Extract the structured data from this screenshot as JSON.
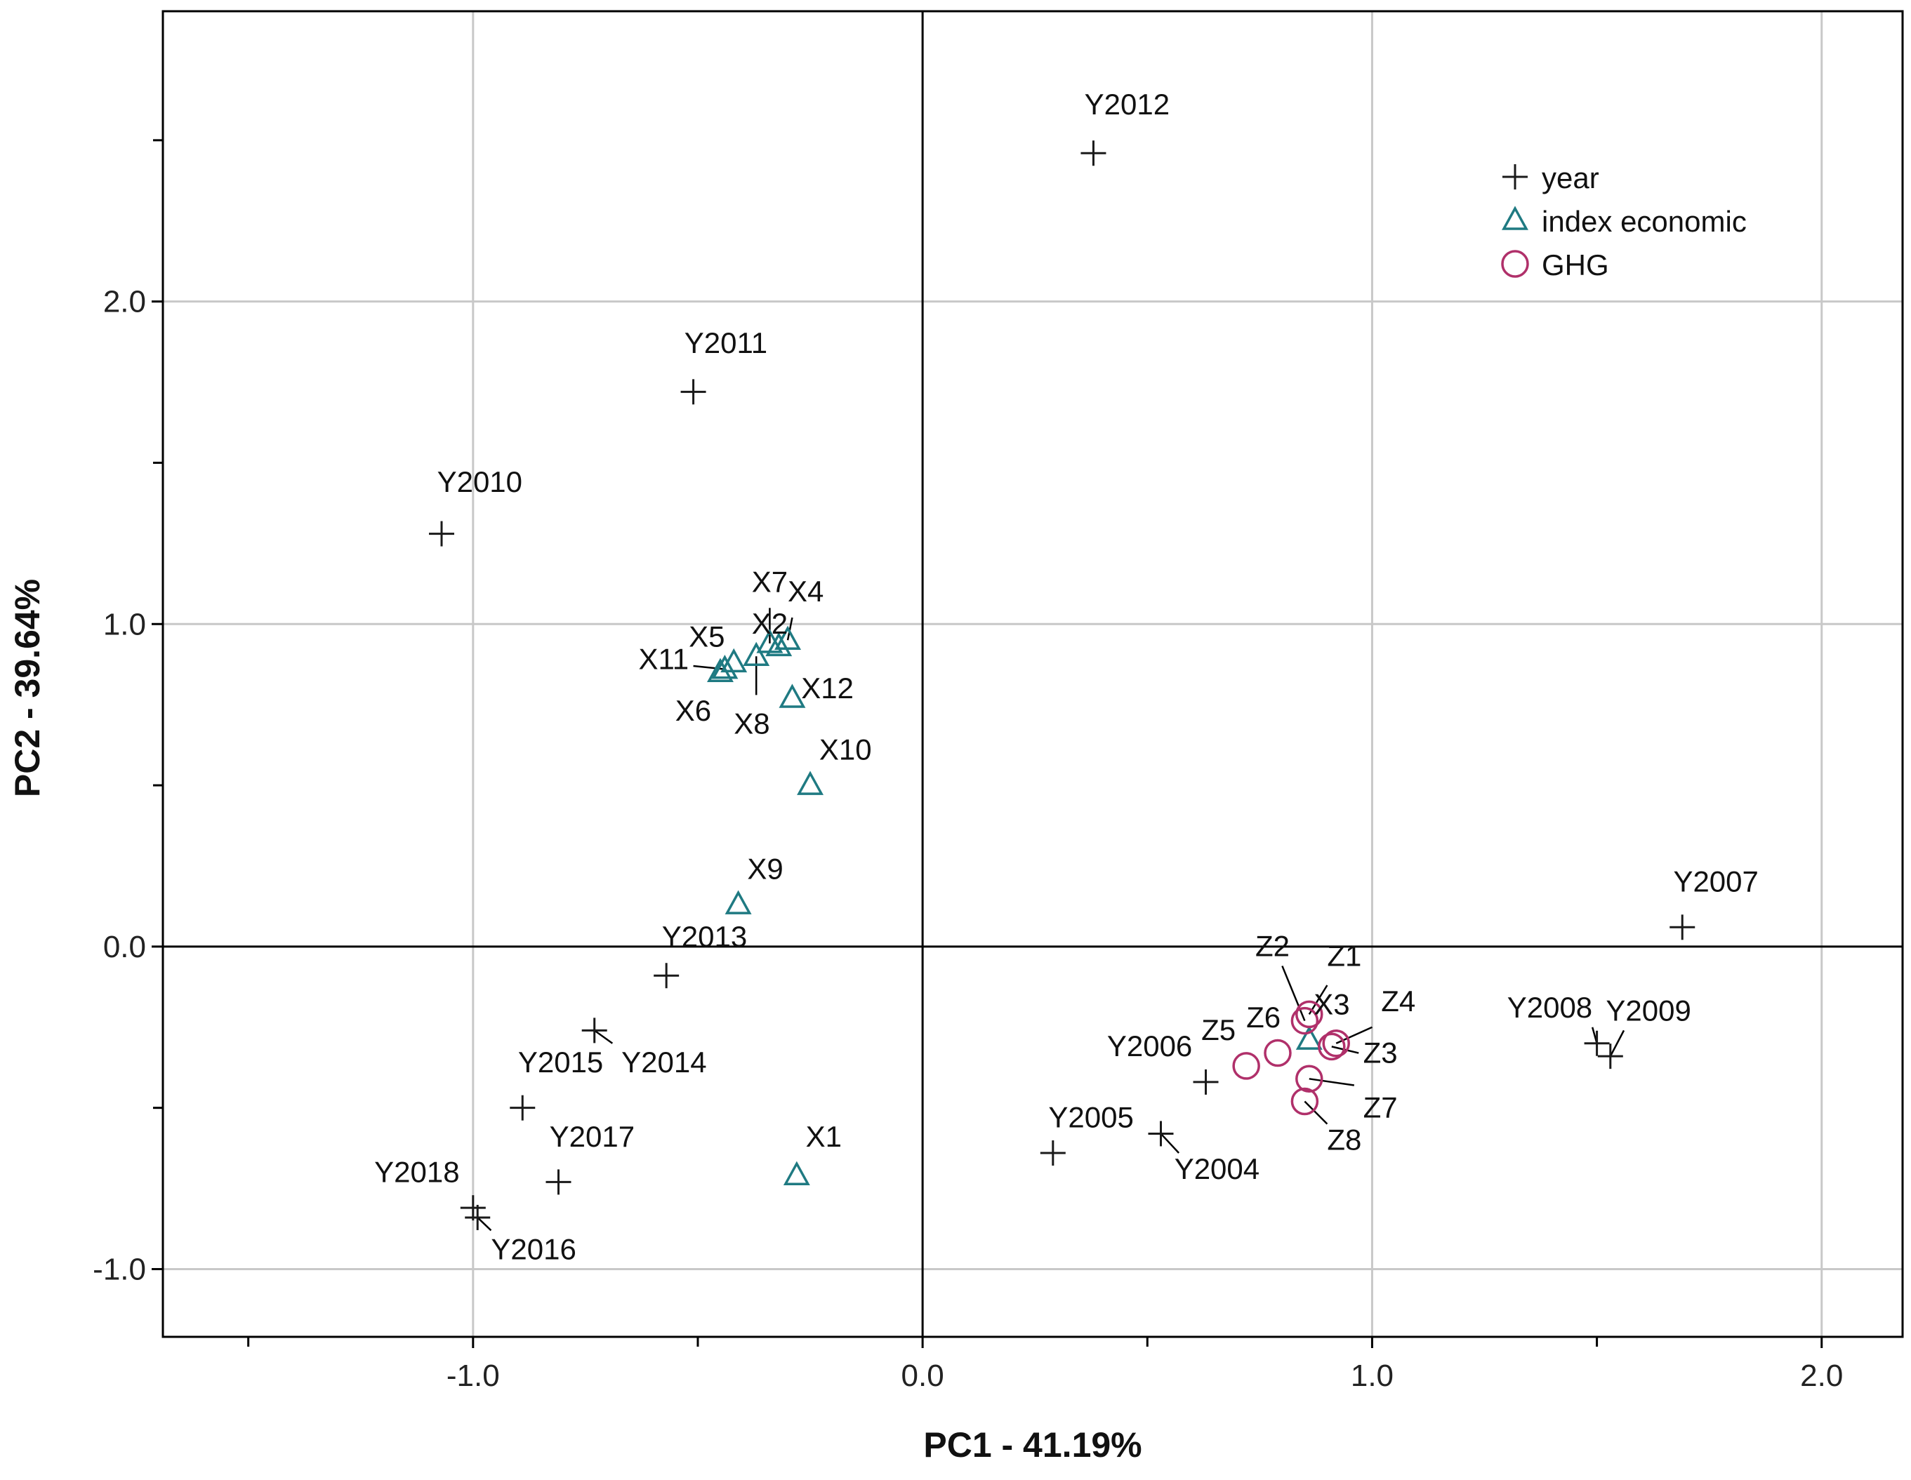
{
  "chart_data": {
    "type": "scatter",
    "title": "",
    "xlabel": "PC1 - 41.19%",
    "ylabel": "PC2 - 39.64%",
    "xlim": [
      -1.69,
      2.18
    ],
    "ylim": [
      -1.21,
      2.9
    ],
    "x_ticks": [
      -1.0,
      0.0,
      1.0,
      2.0
    ],
    "x_tick_labels": [
      "-1.0",
      "0.0",
      "1.0",
      "2.0"
    ],
    "x_minor_ticks": [
      -1.5,
      -0.5,
      0.5,
      1.5
    ],
    "y_ticks": [
      -1.0,
      0.0,
      1.0,
      2.0
    ],
    "y_tick_labels": [
      "-1.0",
      "0.0",
      "1.0",
      "2.0"
    ],
    "y_minor_ticks": [
      -0.5,
      0.5,
      1.5,
      2.5
    ],
    "grid": true,
    "reference_lines": {
      "x": 0,
      "y": 0
    },
    "legend": {
      "placement": "top-right",
      "entries": [
        {
          "label": "year",
          "marker": "plus",
          "color": "#1a1a1a"
        },
        {
          "label": "index economic",
          "marker": "triangle",
          "color": "#1f7a82"
        },
        {
          "label": "GHG",
          "marker": "circle",
          "color": "#b0306a"
        }
      ]
    },
    "series": [
      {
        "name": "year",
        "marker": "plus",
        "color": "#1a1a1a",
        "points": [
          {
            "label": "Y2004",
            "x": 0.53,
            "y": -0.58
          },
          {
            "label": "Y2005",
            "x": 0.29,
            "y": -0.64
          },
          {
            "label": "Y2006",
            "x": 0.63,
            "y": -0.42
          },
          {
            "label": "Y2007",
            "x": 1.69,
            "y": 0.06
          },
          {
            "label": "Y2008",
            "x": 1.5,
            "y": -0.3
          },
          {
            "label": "Y2009",
            "x": 1.53,
            "y": -0.34
          },
          {
            "label": "Y2010",
            "x": -1.07,
            "y": 1.28
          },
          {
            "label": "Y2011",
            "x": -0.51,
            "y": 1.72
          },
          {
            "label": "Y2012",
            "x": 0.38,
            "y": 2.46
          },
          {
            "label": "Y2013",
            "x": -0.57,
            "y": -0.09
          },
          {
            "label": "Y2014",
            "x": -0.73,
            "y": -0.26
          },
          {
            "label": "Y2015",
            "x": -0.89,
            "y": -0.5
          },
          {
            "label": "Y2016",
            "x": -0.99,
            "y": -0.84
          },
          {
            "label": "Y2017",
            "x": -0.81,
            "y": -0.73
          },
          {
            "label": "Y2018",
            "x": -1.0,
            "y": -0.81
          }
        ]
      },
      {
        "name": "index economic",
        "marker": "triangle",
        "color": "#1f7a82",
        "points": [
          {
            "label": "X1",
            "x": -0.28,
            "y": -0.71
          },
          {
            "label": "X2",
            "x": -0.32,
            "y": 0.93
          },
          {
            "label": "X3",
            "x": 0.86,
            "y": -0.29
          },
          {
            "label": "X4",
            "x": -0.3,
            "y": 0.95
          },
          {
            "label": "X5",
            "x": -0.42,
            "y": 0.88
          },
          {
            "label": "X6",
            "x": -0.45,
            "y": 0.85
          },
          {
            "label": "X7",
            "x": -0.34,
            "y": 0.94
          },
          {
            "label": "X8",
            "x": -0.37,
            "y": 0.9
          },
          {
            "label": "X9",
            "x": -0.41,
            "y": 0.13
          },
          {
            "label": "X10",
            "x": -0.25,
            "y": 0.5
          },
          {
            "label": "X11",
            "x": -0.44,
            "y": 0.86
          },
          {
            "label": "X12",
            "x": -0.29,
            "y": 0.77
          }
        ]
      },
      {
        "name": "GHG",
        "marker": "circle",
        "color": "#b0306a",
        "points": [
          {
            "label": "Z1",
            "x": 0.86,
            "y": -0.21
          },
          {
            "label": "Z2",
            "x": 0.85,
            "y": -0.23
          },
          {
            "label": "Z3",
            "x": 0.91,
            "y": -0.31
          },
          {
            "label": "Z4",
            "x": 0.92,
            "y": -0.3
          },
          {
            "label": "Z5",
            "x": 0.72,
            "y": -0.37
          },
          {
            "label": "Z6",
            "x": 0.79,
            "y": -0.33
          },
          {
            "label": "Z7",
            "x": 0.86,
            "y": -0.41
          },
          {
            "label": "Z8",
            "x": 0.85,
            "y": -0.48
          }
        ]
      }
    ],
    "point_labels": [
      {
        "text": "Y2012",
        "x": 0.36,
        "y": 2.58,
        "anchor": "start"
      },
      {
        "text": "Y2011",
        "x": -0.53,
        "y": 1.84,
        "anchor": "start"
      },
      {
        "text": "Y2010",
        "x": -1.08,
        "y": 1.41,
        "anchor": "start"
      },
      {
        "text": "Y2007",
        "x": 1.67,
        "y": 0.17,
        "anchor": "start"
      },
      {
        "text": "Y2013",
        "x": -0.58,
        "y": 0.0,
        "anchor": "start"
      },
      {
        "text": "Y2015",
        "x": -0.9,
        "y": -0.39,
        "anchor": "start"
      },
      {
        "text": "Y2014",
        "x": -0.67,
        "y": -0.39,
        "anchor": "start"
      },
      {
        "text": "Y2017",
        "x": -0.83,
        "y": -0.62,
        "anchor": "start"
      },
      {
        "text": "Y2018",
        "x": -1.03,
        "y": -0.73,
        "anchor": "end"
      },
      {
        "text": "Y2016",
        "x": -0.96,
        "y": -0.97,
        "anchor": "start"
      },
      {
        "text": "Y2006",
        "x": 0.6,
        "y": -0.34,
        "anchor": "end"
      },
      {
        "text": "Y2005",
        "x": 0.28,
        "y": -0.56,
        "anchor": "start"
      },
      {
        "text": "Y2004",
        "x": 0.56,
        "y": -0.72,
        "anchor": "start"
      },
      {
        "text": "Y2008",
        "x": 1.49,
        "y": -0.22,
        "anchor": "end"
      },
      {
        "text": "Y2009",
        "x": 1.52,
        "y": -0.23,
        "anchor": "start"
      },
      {
        "text": "X7",
        "x": -0.38,
        "y": 1.1,
        "anchor": "start"
      },
      {
        "text": "X4",
        "x": -0.3,
        "y": 1.07,
        "anchor": "start"
      },
      {
        "text": "X2",
        "x": -0.38,
        "y": 0.97,
        "anchor": "start"
      },
      {
        "text": "X5",
        "x": -0.52,
        "y": 0.93,
        "anchor": "start"
      },
      {
        "text": "X11",
        "x": -0.52,
        "y": 0.86,
        "anchor": "end"
      },
      {
        "text": "X12",
        "x": -0.27,
        "y": 0.77,
        "anchor": "start"
      },
      {
        "text": "X6",
        "x": -0.47,
        "y": 0.7,
        "anchor": "end"
      },
      {
        "text": "X8",
        "x": -0.42,
        "y": 0.66,
        "anchor": "start"
      },
      {
        "text": "X10",
        "x": -0.23,
        "y": 0.58,
        "anchor": "start"
      },
      {
        "text": "X9",
        "x": -0.39,
        "y": 0.21,
        "anchor": "start"
      },
      {
        "text": "X1",
        "x": -0.26,
        "y": -0.62,
        "anchor": "start"
      },
      {
        "text": "X3",
        "x": 0.87,
        "y": -0.21,
        "anchor": "start"
      },
      {
        "text": "Z2",
        "x": 0.74,
        "y": -0.03,
        "anchor": "start"
      },
      {
        "text": "Z1",
        "x": 0.9,
        "y": -0.06,
        "anchor": "start"
      },
      {
        "text": "Z4",
        "x": 1.02,
        "y": -0.2,
        "anchor": "start"
      },
      {
        "text": "Z3",
        "x": 0.98,
        "y": -0.36,
        "anchor": "start"
      },
      {
        "text": "Z6",
        "x": 0.72,
        "y": -0.25,
        "anchor": "start"
      },
      {
        "text": "Z5",
        "x": 0.62,
        "y": -0.29,
        "anchor": "start"
      },
      {
        "text": "Z7",
        "x": 0.98,
        "y": -0.53,
        "anchor": "start"
      },
      {
        "text": "Z8",
        "x": 0.9,
        "y": -0.63,
        "anchor": "start"
      }
    ],
    "leader_lines": [
      [
        0.85,
        -0.23,
        0.8,
        -0.06
      ],
      [
        0.86,
        -0.21,
        0.9,
        -0.12
      ],
      [
        0.92,
        -0.3,
        1.0,
        -0.25
      ],
      [
        0.91,
        -0.31,
        0.97,
        -0.33
      ],
      [
        0.86,
        -0.41,
        0.96,
        -0.43
      ],
      [
        0.85,
        -0.48,
        0.9,
        -0.55
      ],
      [
        -0.44,
        0.86,
        -0.51,
        0.87
      ],
      [
        -0.37,
        0.9,
        -0.37,
        0.78
      ],
      [
        -0.34,
        0.94,
        -0.34,
        1.05
      ],
      [
        -0.3,
        0.95,
        -0.29,
        1.02
      ],
      [
        -0.73,
        -0.26,
        -0.69,
        -0.3
      ],
      [
        -0.99,
        -0.84,
        -0.96,
        -0.88
      ],
      [
        0.53,
        -0.58,
        0.57,
        -0.64
      ],
      [
        1.5,
        -0.3,
        1.49,
        -0.25
      ],
      [
        1.53,
        -0.34,
        1.56,
        -0.26
      ]
    ]
  }
}
